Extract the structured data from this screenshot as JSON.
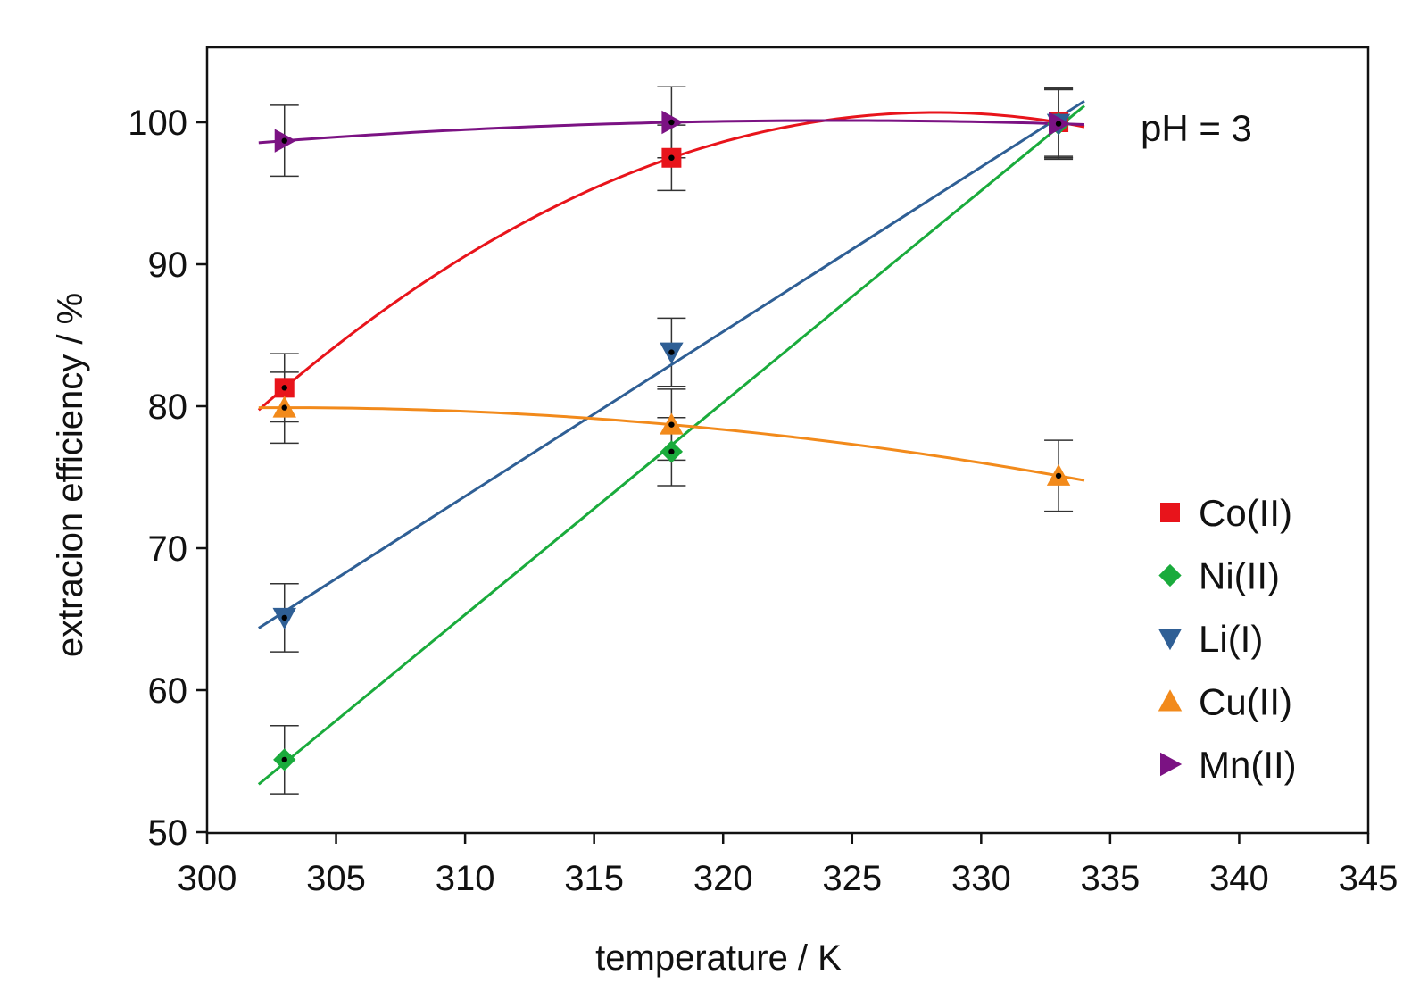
{
  "chart_data": {
    "type": "scatter",
    "xlabel": "temperature / K",
    "ylabel": "extracion efficiency / %",
    "xlim": [
      300,
      345
    ],
    "ylim": [
      50,
      105
    ],
    "xticks": [
      300,
      305,
      310,
      315,
      320,
      325,
      330,
      335,
      340,
      345
    ],
    "yticks": [
      50,
      60,
      70,
      80,
      90,
      100
    ],
    "grid": false,
    "legend_position": "right",
    "annotation": "pH = 3",
    "series": [
      {
        "name": "Co(II)",
        "color": "#e8141b",
        "marker": "square",
        "x": [
          303,
          318,
          333
        ],
        "y": [
          81.3,
          97.5,
          100.0
        ],
        "err": [
          2.4,
          2.3,
          2.4
        ],
        "fit": {
          "kind": "quadratic",
          "x_range": [
            302,
            334
          ]
        }
      },
      {
        "name": "Ni(II)",
        "color": "#1aab3c",
        "marker": "diamond",
        "x": [
          303,
          318,
          333
        ],
        "y": [
          55.1,
          76.8,
          99.9
        ],
        "err": [
          2.4,
          2.4,
          2.4
        ],
        "fit": {
          "kind": "linear",
          "x_range": [
            302,
            334
          ]
        }
      },
      {
        "name": "Li(I)",
        "color": "#2f5f95",
        "marker": "triangle-down",
        "x": [
          303,
          318,
          333
        ],
        "y": [
          65.1,
          83.8,
          99.9
        ],
        "err": [
          2.4,
          2.4,
          2.4
        ],
        "fit": {
          "kind": "linear",
          "x_range": [
            302,
            334
          ]
        }
      },
      {
        "name": "Cu(II)",
        "color": "#f28a1b",
        "marker": "triangle-up",
        "x": [
          303,
          318,
          333
        ],
        "y": [
          79.9,
          78.7,
          75.1
        ],
        "err": [
          2.5,
          2.5,
          2.5
        ],
        "fit": {
          "kind": "quadratic",
          "x_range": [
            302,
            334
          ]
        }
      },
      {
        "name": "Mn(II)",
        "color": "#7b1283",
        "marker": "triangle-right",
        "x": [
          303,
          318,
          333
        ],
        "y": [
          98.7,
          100.0,
          99.9
        ],
        "err": [
          2.5,
          2.5,
          2.5
        ],
        "fit": {
          "kind": "quadratic",
          "x_range": [
            302,
            334
          ]
        }
      }
    ]
  }
}
